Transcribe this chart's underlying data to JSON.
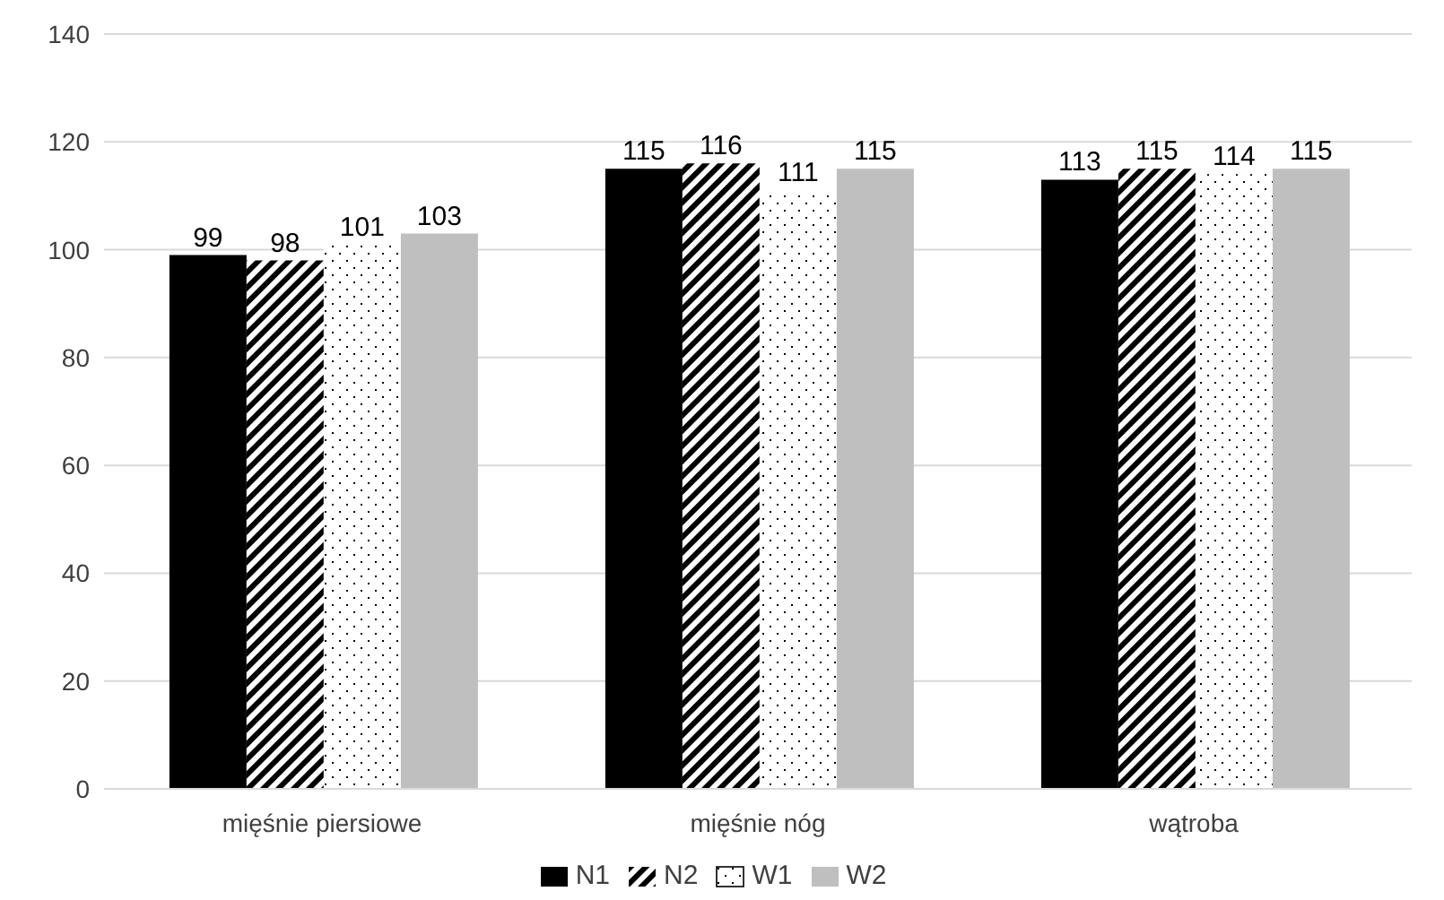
{
  "chart_data": {
    "type": "bar",
    "categories": [
      "mięśnie piersiowe",
      "mięśnie nóg",
      "wątroba"
    ],
    "series": [
      {
        "name": "N1",
        "color": "#000000",
        "values": [
          99,
          115,
          113
        ]
      },
      {
        "name": "N2",
        "color": "#000000",
        "values": [
          98,
          116,
          115
        ]
      },
      {
        "name": "W1",
        "color": "#ffffff",
        "values": [
          101,
          111,
          114
        ]
      },
      {
        "name": "W2",
        "color": "#bfbfbf",
        "values": [
          103,
          115,
          115
        ]
      }
    ],
    "ylim": [
      0,
      140
    ],
    "yticks": [
      0,
      20,
      40,
      60,
      80,
      100,
      120,
      140
    ],
    "grid": "y",
    "legend": "bottom",
    "data_labels": true
  }
}
